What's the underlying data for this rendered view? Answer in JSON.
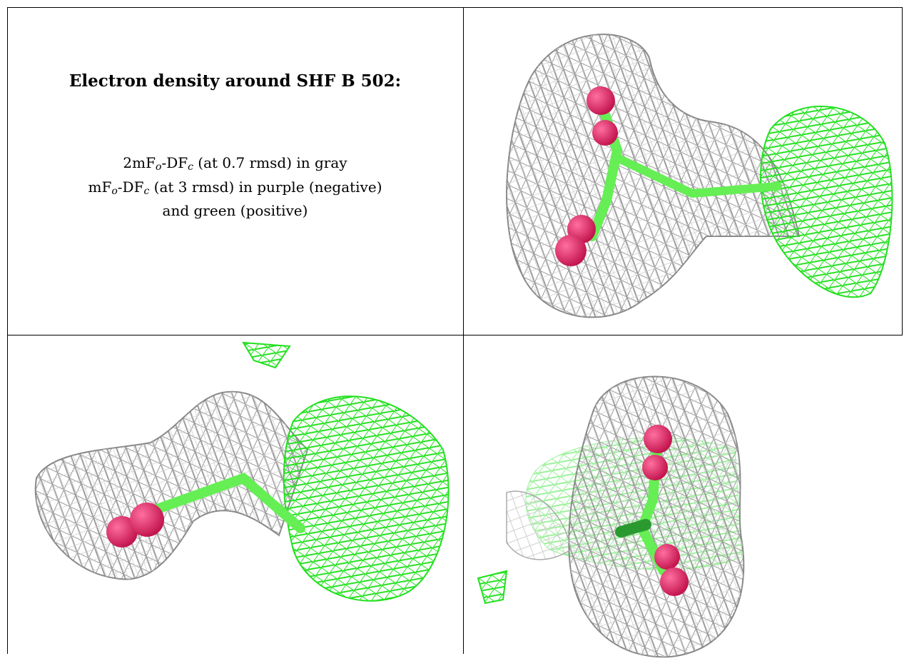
{
  "caption": {
    "title": "Electron density around SHF B 502:",
    "line1": {
      "a": "2mF",
      "sub1": "o",
      "b": "-DF",
      "sub2": "c",
      "c": " (at 0.7 rmsd) in gray"
    },
    "line2": {
      "a": "mF",
      "sub1": "o",
      "b": "-DF",
      "sub2": "c",
      "c": " (at 3 rmsd) in purple (negative)"
    },
    "line3": "and green (positive)"
  },
  "colors": {
    "mesh_gray": "#9a9a9a",
    "mesh_light": "#cfcfcf",
    "mesh_green": "#22e01e",
    "stick_green": "#66ee55",
    "atom_pink": "#e0185a"
  },
  "panels": [
    "view-top-right",
    "view-bottom-left",
    "view-bottom-right"
  ]
}
